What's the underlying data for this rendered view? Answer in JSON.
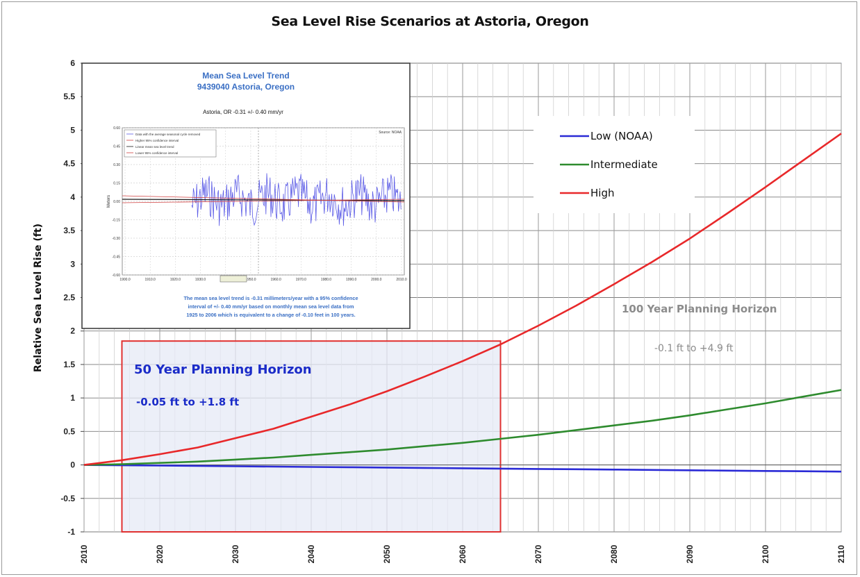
{
  "chart_data": {
    "type": "line",
    "title": "Sea Level Rise Scenarios at  Astoria, Oregon",
    "ylabel": "Relative Sea Level Rise (ft)",
    "xlabel": "",
    "xlim": [
      2010,
      2110
    ],
    "ylim": [
      -1,
      6
    ],
    "x_ticks": [
      "2010",
      "2020",
      "2030",
      "2040",
      "2050",
      "2060",
      "2070",
      "2080",
      "2090",
      "2100",
      "2110"
    ],
    "y_ticks": [
      "6",
      "5.5",
      "5",
      "4.5",
      "4",
      "3.5",
      "3",
      "2.5",
      "2",
      "1.5",
      "1",
      "0.5",
      "0",
      "-0.5",
      "-1"
    ],
    "grid": true,
    "legend_position": "top-right",
    "x": [
      2010,
      2015,
      2020,
      2025,
      2030,
      2035,
      2040,
      2045,
      2050,
      2055,
      2060,
      2065,
      2070,
      2075,
      2080,
      2085,
      2090,
      2095,
      2100,
      2105,
      2110
    ],
    "series": [
      {
        "name": "Low (NOAA)",
        "color": "#2a2ad6",
        "values": [
          0,
          -0.005,
          -0.01,
          -0.015,
          -0.02,
          -0.025,
          -0.03,
          -0.035,
          -0.04,
          -0.045,
          -0.05,
          -0.055,
          -0.06,
          -0.065,
          -0.07,
          -0.075,
          -0.08,
          -0.085,
          -0.09,
          -0.095,
          -0.1
        ]
      },
      {
        "name": "Intermediate",
        "color": "#2e8b2e",
        "values": [
          0,
          0.01,
          0.03,
          0.05,
          0.08,
          0.11,
          0.15,
          0.19,
          0.23,
          0.28,
          0.33,
          0.39,
          0.45,
          0.52,
          0.59,
          0.66,
          0.74,
          0.83,
          0.92,
          1.02,
          1.12
        ]
      },
      {
        "name": "High",
        "color": "#e8282a",
        "values": [
          0,
          0.07,
          0.16,
          0.26,
          0.4,
          0.54,
          0.72,
          0.9,
          1.1,
          1.32,
          1.55,
          1.8,
          2.08,
          2.38,
          2.7,
          3.03,
          3.38,
          3.76,
          4.15,
          4.55,
          4.95
        ]
      }
    ],
    "annotations": {
      "horizon50_title": "50 Year Planning Horizon",
      "horizon50_range": "-0.05 ft to +1.8 ft",
      "horizon50_years": [
        2015,
        2065
      ],
      "horizon50_ylim": [
        -1,
        1.85
      ],
      "horizon100_title": "100 Year Planning Horizon",
      "horizon100_range": "-0.1 ft to +4.9 ft"
    }
  },
  "inset": {
    "title": "Mean Sea Level Trend",
    "subtitle": "9439040 Astoria, Oregon",
    "station_line": "Astoria, OR       -0.31 +/- 0.40 mm/yr",
    "source": "Source: NOAA",
    "ylabel": "Meters",
    "legend": [
      "Data with the average seasonal cycle removed",
      "Higher 95% confidence interval",
      "Linear mean sea level trend",
      "Lower 95% confidence interval"
    ],
    "y_ticks": [
      "0.60",
      "0.45",
      "0.30",
      "0.15",
      "0.00",
      "-0.15",
      "-0.30",
      "-0.45",
      "-0.60"
    ],
    "x_ticks": [
      "1900.0",
      "1910.0",
      "1920.0",
      "1930.0",
      "1940.0",
      "1950.0",
      "1960.0",
      "1970.0",
      "1980.0",
      "1990.0",
      "2000.0",
      "2010.0"
    ],
    "caption": [
      "The mean sea level trend is -0.31 millimeters/year with a 95% confidence",
      "interval of +/- 0.40 mm/yr based on monthly mean sea level data from",
      "1925 to 2006 which is equivalent to a change of -0.10 feet in 100 years."
    ]
  }
}
